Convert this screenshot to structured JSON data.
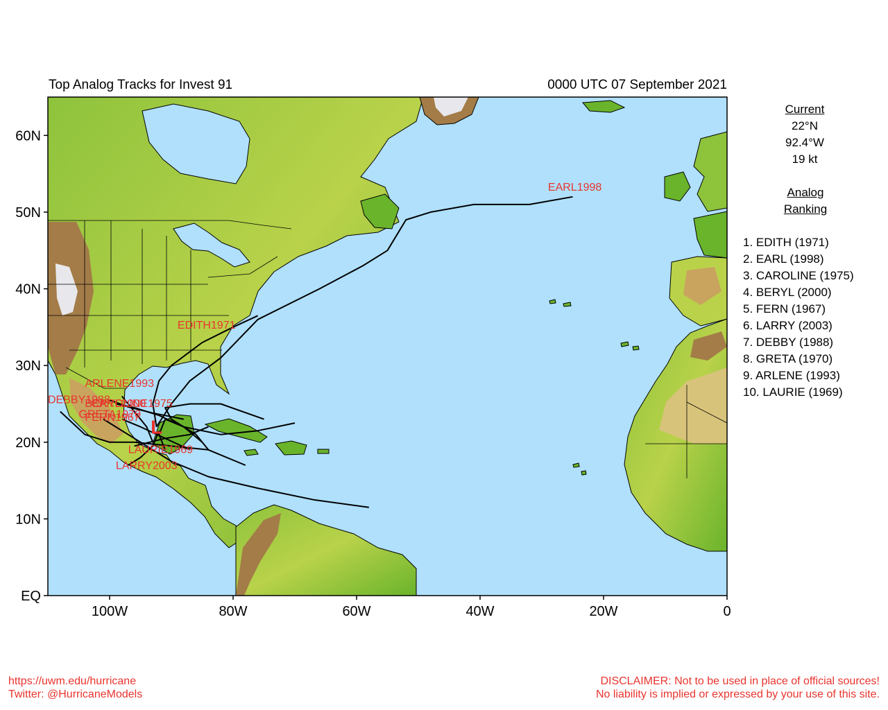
{
  "title": "Top Analog Tracks for Invest 91",
  "datetime": "0000 UTC 07 September 2021",
  "axes": {
    "lat_ticks": [
      {
        "value": 60,
        "label": "60N"
      },
      {
        "value": 50,
        "label": "50N"
      },
      {
        "value": 40,
        "label": "40N"
      },
      {
        "value": 30,
        "label": "30N"
      },
      {
        "value": 20,
        "label": "20N"
      },
      {
        "value": 10,
        "label": "10N"
      },
      {
        "value": 0,
        "label": "EQ"
      }
    ],
    "lon_ticks": [
      {
        "value": -100,
        "label": "100W"
      },
      {
        "value": -80,
        "label": "80W"
      },
      {
        "value": -60,
        "label": "60W"
      },
      {
        "value": -40,
        "label": "40W"
      },
      {
        "value": -20,
        "label": "20W"
      },
      {
        "value": 0,
        "label": "0"
      }
    ],
    "lon_range": [
      -110,
      0
    ],
    "lat_range": [
      0,
      65
    ]
  },
  "current": {
    "heading": "Current",
    "lat": "22°N",
    "lon": "92.4°W",
    "speed": "19 kt",
    "symbol": "L"
  },
  "analog_heading": "Analog Ranking",
  "ranking": [
    "1.  EDITH (1971)",
    "2.  EARL (1998)",
    "3.  CAROLINE (1975)",
    "4.  BERYL (2000)",
    "5.  FERN (1967)",
    "6.  LARRY (2003)",
    "7.  DEBBY (1988)",
    "8.  GRETA (1970)",
    "9.  ARLENE (1993)",
    "10. LAURIE (1969)"
  ],
  "colors": {
    "ocean": "#b0e0fc",
    "land_low": "#6ab42c",
    "land_mid": "#b9d24a",
    "mountain": "#a37c48",
    "ice": "#e8e8ec",
    "track": "#000000",
    "label": "#e8342e"
  },
  "tracks": [
    {
      "name": "EDITH1971",
      "label_pos": [
        -89,
        34.8
      ],
      "points": [
        [
          -92.4,
          22
        ],
        [
          -93,
          25
        ],
        [
          -92,
          28
        ],
        [
          -90,
          30
        ],
        [
          -85,
          33
        ],
        [
          -80,
          35
        ],
        [
          -76,
          36.5
        ]
      ]
    },
    {
      "name": "EARL1998",
      "label_pos": [
        -29,
        52.8
      ],
      "points": [
        [
          -92.4,
          22
        ],
        [
          -90,
          25
        ],
        [
          -87,
          28
        ],
        [
          -82,
          31
        ],
        [
          -76,
          36
        ],
        [
          -66,
          40
        ],
        [
          -59,
          43
        ],
        [
          -55,
          45
        ],
        [
          -52,
          49
        ],
        [
          -48,
          50
        ],
        [
          -41,
          51
        ],
        [
          -32,
          51
        ],
        [
          -25,
          52
        ]
      ]
    },
    {
      "name": "CAROLINE1975",
      "label_pos": [
        -103,
        24.6
      ],
      "points": [
        [
          -85,
          20
        ],
        [
          -88,
          22
        ],
        [
          -92,
          23.5
        ],
        [
          -96,
          24.5
        ],
        [
          -99,
          25
        ]
      ]
    },
    {
      "name": "BERYL2000",
      "label_pos": [
        -104,
        24.6
      ],
      "points": [
        [
          -88,
          23
        ],
        [
          -93,
          23.8
        ],
        [
          -97,
          24.6
        ],
        [
          -100,
          25.5
        ]
      ]
    },
    {
      "name": "FERN1967",
      "label_pos": [
        -104,
        22.8
      ],
      "points": [
        [
          -87,
          19
        ],
        [
          -91,
          20.5
        ],
        [
          -95,
          22
        ],
        [
          -98,
          23
        ]
      ]
    },
    {
      "name": "LARRY2003",
      "label_pos": [
        -99,
        16.5
      ],
      "points": [
        [
          -92,
          21.5
        ],
        [
          -93,
          19.5
        ],
        [
          -95,
          18
        ],
        [
          -97,
          17
        ]
      ]
    },
    {
      "name": "DEBBY1988",
      "label_pos": [
        -110,
        25.1
      ],
      "points": [
        [
          -78,
          17
        ],
        [
          -84,
          19
        ],
        [
          -90,
          19.5
        ],
        [
          -96,
          20
        ],
        [
          -100,
          20
        ],
        [
          -104,
          21
        ],
        [
          -108,
          24
        ]
      ]
    },
    {
      "name": "GRETA1970",
      "label_pos": [
        -105,
        23.2
      ],
      "points": [
        [
          -58,
          11.5
        ],
        [
          -67,
          12.5
        ],
        [
          -76,
          14
        ],
        [
          -84,
          15.5
        ],
        [
          -90,
          17.5
        ],
        [
          -94,
          19.5
        ],
        [
          -98,
          21.5
        ],
        [
          -101,
          23
        ]
      ]
    },
    {
      "name": "ARLENE1993",
      "label_pos": [
        -104,
        27.2
      ],
      "points": [
        [
          -93,
          20
        ],
        [
          -94,
          22
        ],
        [
          -96,
          24
        ],
        [
          -98,
          26
        ]
      ]
    },
    {
      "name": "LAURIE1969",
      "label_pos": [
        -97,
        18.6
      ],
      "points": [
        [
          -84,
          22
        ],
        [
          -87,
          21
        ],
        [
          -91,
          20.5
        ],
        [
          -96,
          19.5
        ]
      ]
    },
    {
      "name": "",
      "label_pos": [
        -85,
        21.5
      ],
      "points": [
        [
          -70,
          22.5
        ],
        [
          -76,
          21.5
        ],
        [
          -82,
          21
        ],
        [
          -88,
          22
        ],
        [
          -91,
          23
        ],
        [
          -92,
          21
        ],
        [
          -91,
          19
        ]
      ]
    },
    {
      "name": "",
      "label_pos": [
        -85,
        21.5
      ],
      "points": [
        [
          -75,
          23
        ],
        [
          -82,
          25
        ],
        [
          -87,
          25
        ],
        [
          -91,
          24.5
        ],
        [
          -90,
          23
        ],
        [
          -86,
          21
        ],
        [
          -84,
          19
        ]
      ]
    }
  ],
  "footer": {
    "url": "https://uwm.edu/hurricane",
    "twitter": "Twitter: @HurricaneModels",
    "disclaimer1": "DISCLAIMER: Not to be used in place of official sources!",
    "disclaimer2": "No liability is implied or expressed by your use of this site."
  }
}
